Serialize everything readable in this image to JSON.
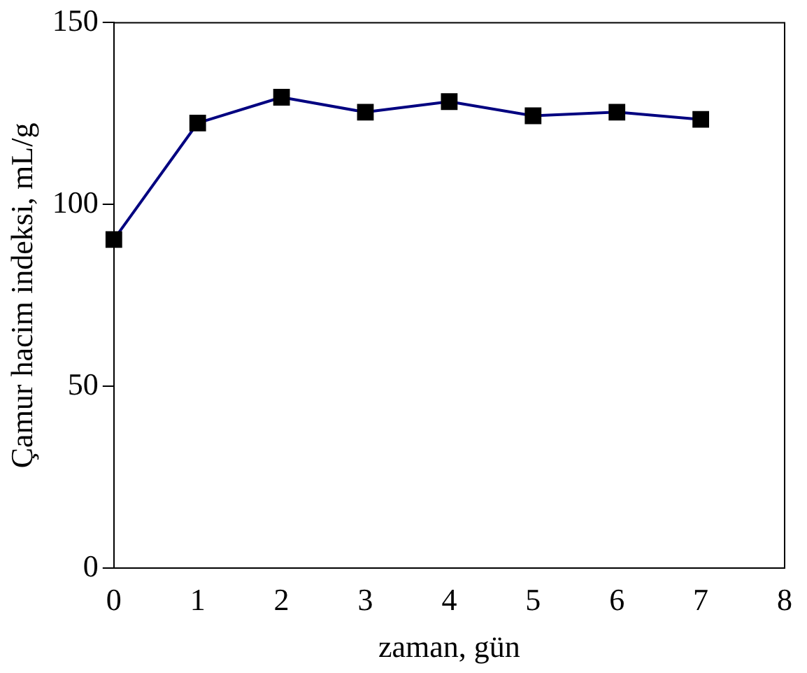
{
  "chart_data": {
    "type": "line",
    "xlabel": "zaman, gün",
    "ylabel": "Çamur hacim indeksi, mL/g",
    "x": [
      0,
      1,
      2,
      3,
      4,
      5,
      6,
      7
    ],
    "series": [
      {
        "color": "#000080",
        "values": [
          90.4,
          122.4,
          129.5,
          125.4,
          128.3,
          124.4,
          125.4,
          123.4
        ]
      }
    ],
    "xlim": [
      0,
      8
    ],
    "xticks": [
      0,
      1,
      2,
      3,
      4,
      5,
      6,
      7,
      8
    ],
    "ylim": [
      0,
      150
    ],
    "yticks": [
      0,
      50,
      100,
      150
    ],
    "grid": false,
    "legend": false,
    "marker": "square",
    "line_style": "solid"
  }
}
